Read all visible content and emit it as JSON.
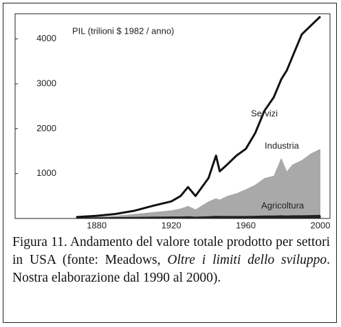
{
  "chart_data": {
    "type": "area",
    "y_label": "PIL (trilioni $ 1982 / anno)",
    "x": [
      1869,
      1880,
      1890,
      1900,
      1910,
      1920,
      1925,
      1929,
      1933,
      1940,
      1944,
      1946,
      1950,
      1955,
      1960,
      1965,
      1970,
      1975,
      1979,
      1982,
      1985,
      1990,
      1995,
      2000
    ],
    "series": [
      {
        "name": "Industria",
        "color": "#a9a9a9",
        "style": "area",
        "values": [
          20,
          40,
          60,
          100,
          140,
          180,
          220,
          280,
          200,
          380,
          450,
          420,
          500,
          560,
          650,
          750,
          900,
          950,
          1350,
          1050,
          1200,
          1300,
          1450,
          1550
        ]
      },
      {
        "name": "Agricoltura",
        "color": "#222222",
        "style": "area",
        "values": [
          20,
          25,
          30,
          35,
          40,
          45,
          45,
          50,
          40,
          50,
          60,
          55,
          55,
          55,
          55,
          60,
          65,
          65,
          70,
          65,
          70,
          70,
          75,
          80
        ]
      },
      {
        "name": "Servizi",
        "color": "#111111",
        "style": "line",
        "values": [
          30,
          60,
          100,
          170,
          280,
          380,
          500,
          700,
          500,
          900,
          1400,
          1050,
          1200,
          1400,
          1550,
          1900,
          2400,
          2700,
          3100,
          3300,
          3600,
          4100,
          4300,
          4500
        ]
      }
    ],
    "xlim": [
      1865,
      2000
    ],
    "xticks": [
      1880,
      1920,
      1960,
      2000
    ],
    "ylim": [
      0,
      4500
    ],
    "yticks": [
      1000,
      2000,
      3000,
      4000
    ]
  },
  "caption": {
    "before": "Figura 11. Andamento del valore totale prodotto per settori in USA (fonte: Meadows, ",
    "italic": "Oltre i limiti dello sviluppo",
    "after": ". Nostra elaborazione dal 1990 al 2000)."
  }
}
